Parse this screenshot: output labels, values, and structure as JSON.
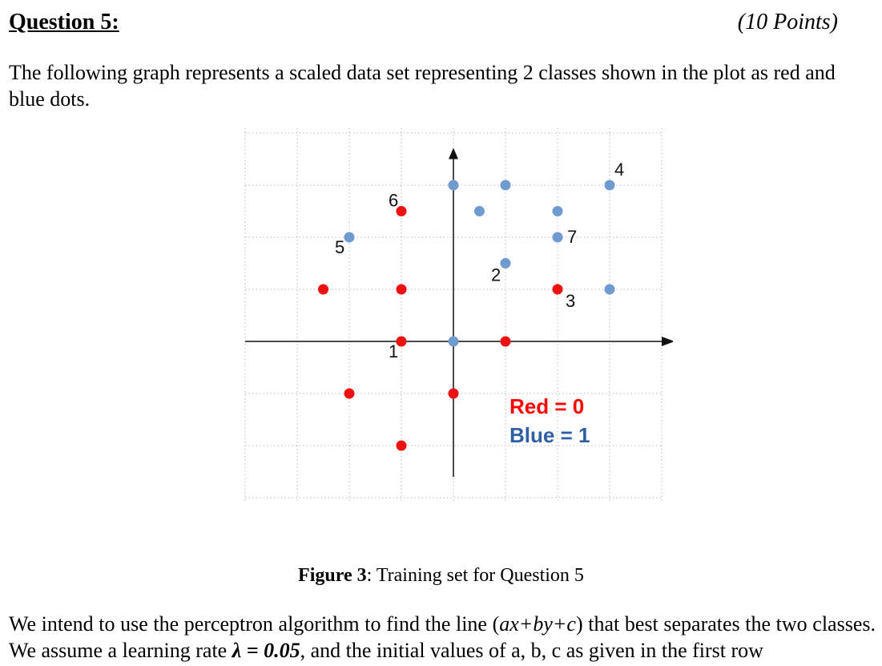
{
  "question": {
    "title": "Question 5:",
    "points": "(10 Points)"
  },
  "intro": "The following graph represents a scaled data set representing 2 classes shown in the plot as red and blue dots.",
  "legend": {
    "red": "Red =  0",
    "blue": "Blue = 1",
    "red_color": "#ff0000",
    "blue_color": "#2e5fa3"
  },
  "caption": {
    "label": "Figure 3",
    "text": ": Training set for Question 5"
  },
  "body": {
    "part1": "We intend to use the perceptron algorithm to find the line (",
    "expr": "ax+by+c",
    "part2": ") that best separates the two classes. We assume a learning rate ",
    "rate": "λ = 0.05",
    "part3": ", and the initial values of a, b, c as given in the first row"
  },
  "chart_data": {
    "type": "scatter",
    "title": "",
    "xlabel": "",
    "ylabel": "",
    "xlim": [
      -4,
      4
    ],
    "ylim": [
      -3,
      4
    ],
    "grid": true,
    "colors": {
      "red": "#ee1111",
      "blue": "#6f9bd1"
    },
    "series": [
      {
        "name": "Red",
        "label_value": 0,
        "points": [
          {
            "x": -2.5,
            "y": 1,
            "label": ""
          },
          {
            "x": -1,
            "y": 2.5,
            "label": "6"
          },
          {
            "x": -1,
            "y": 1,
            "label": ""
          },
          {
            "x": -1,
            "y": 0,
            "label": "1"
          },
          {
            "x": 1,
            "y": 0,
            "label": ""
          },
          {
            "x": 2,
            "y": 1,
            "label": "3"
          },
          {
            "x": -2,
            "y": -1,
            "label": ""
          },
          {
            "x": 0,
            "y": -1,
            "label": ""
          },
          {
            "x": -1,
            "y": -2,
            "label": ""
          }
        ]
      },
      {
        "name": "Blue",
        "label_value": 1,
        "points": [
          {
            "x": 0,
            "y": 3,
            "label": ""
          },
          {
            "x": 1,
            "y": 3,
            "label": ""
          },
          {
            "x": 3,
            "y": 3,
            "label": "4"
          },
          {
            "x": 0.5,
            "y": 2.5,
            "label": ""
          },
          {
            "x": 2,
            "y": 2.5,
            "label": ""
          },
          {
            "x": 2,
            "y": 2,
            "label": "7"
          },
          {
            "x": -2,
            "y": 2,
            "label": "5"
          },
          {
            "x": 1,
            "y": 1.5,
            "label": "2"
          },
          {
            "x": 3,
            "y": 1,
            "label": ""
          },
          {
            "x": 0,
            "y": 0,
            "label": ""
          }
        ]
      }
    ]
  }
}
